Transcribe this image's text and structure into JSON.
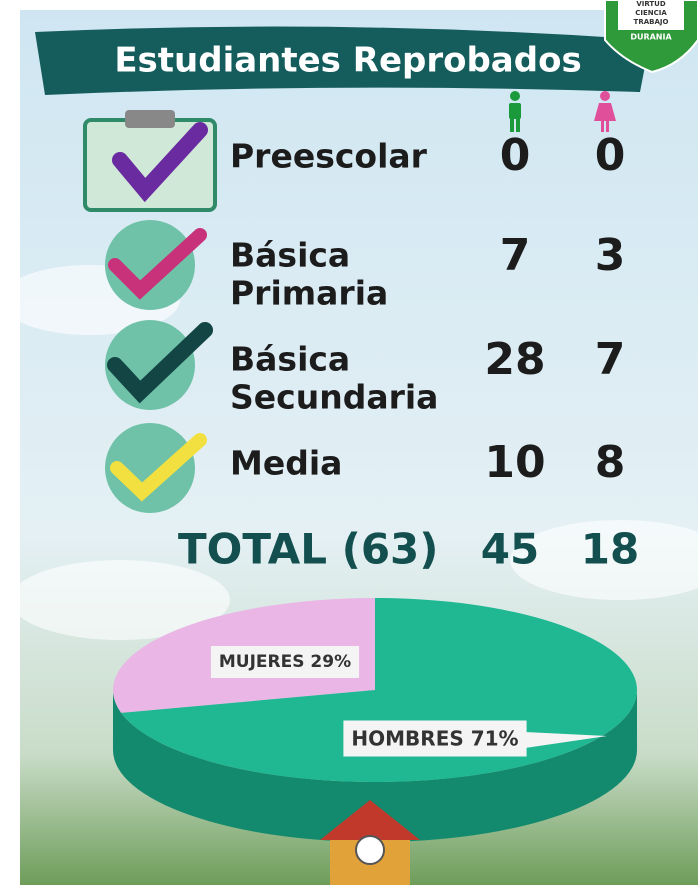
{
  "logo": {
    "lines": [
      "VIRTUD",
      "CIENCIA",
      "TRABAJO"
    ],
    "name": "DURANIA"
  },
  "title": "Estudiantes Reprobados",
  "table": {
    "rows": [
      {
        "level": [
          "Preescolar"
        ],
        "men": 0,
        "women": 0
      },
      {
        "level": [
          "Básica",
          "Primaria"
        ],
        "men": 7,
        "women": 3
      },
      {
        "level": [
          "Básica",
          "Secundaria"
        ],
        "men": 28,
        "women": 7
      },
      {
        "level": [
          "Media"
        ],
        "men": 10,
        "women": 8
      }
    ]
  },
  "total": {
    "label": "TOTAL (63)",
    "men": 45,
    "women": 18
  },
  "chart_data": {
    "type": "pie",
    "values": [
      29,
      71
    ],
    "value_labels": [
      "MUJERES 29%",
      "HOMBRES 71%"
    ],
    "colors": [
      "#e9b6e6",
      "#1fb893"
    ]
  }
}
